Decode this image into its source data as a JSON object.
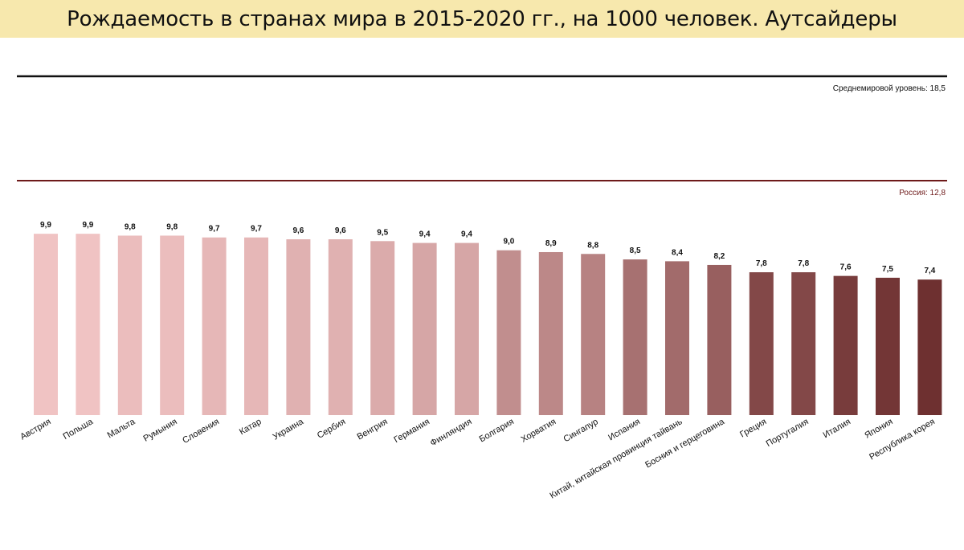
{
  "title": "Рождаемость в странах мира в 2015-2020 гг., на 1000 человек. Аутсайдеры",
  "colors": {
    "title_background": "#f7e8ad",
    "world_line": "#111111",
    "russia_line": "#6e1a1a",
    "bar_light": "#f0c3c3",
    "bar_dark": "#6e3030"
  },
  "chart_data": {
    "type": "bar",
    "title": "Рождаемость в странах мира в 2015-2020 гг., на 1000 человек. Аутсайдеры",
    "categories": [
      "Австрия",
      "Польша",
      "Мальта",
      "Румыния",
      "Словения",
      "Катар",
      "Украина",
      "Сербия",
      "Венгрия",
      "Германия",
      "Финляндия",
      "Болгария",
      "Хорватия",
      "Сингапур",
      "Испания",
      "Китай, китайская провинция тайвань",
      "Босния и герцеговина",
      "Греция",
      "Португалия",
      "Италия",
      "Япония",
      "Республика корея"
    ],
    "values": [
      9.9,
      9.9,
      9.8,
      9.8,
      9.7,
      9.7,
      9.6,
      9.6,
      9.5,
      9.4,
      9.4,
      9.0,
      8.9,
      8.8,
      8.5,
      8.4,
      8.2,
      7.8,
      7.8,
      7.6,
      7.5,
      7.4
    ],
    "value_labels": [
      "9,9",
      "9,9",
      "9,8",
      "9,8",
      "9,7",
      "9,7",
      "9,6",
      "9,6",
      "9,5",
      "9,4",
      "9,4",
      "9,0",
      "8,9",
      "8,8",
      "8,5",
      "8,4",
      "8,2",
      "7,8",
      "7,8",
      "7,6",
      "7,5",
      "7,4"
    ],
    "reference_lines": [
      {
        "label": "Среднемировой уровень: 18,5",
        "value": 18.5
      },
      {
        "label": "Россия: 12,8",
        "value": 12.8
      }
    ],
    "ylim": [
      0,
      18.5
    ],
    "grid": false,
    "legend": "none"
  }
}
